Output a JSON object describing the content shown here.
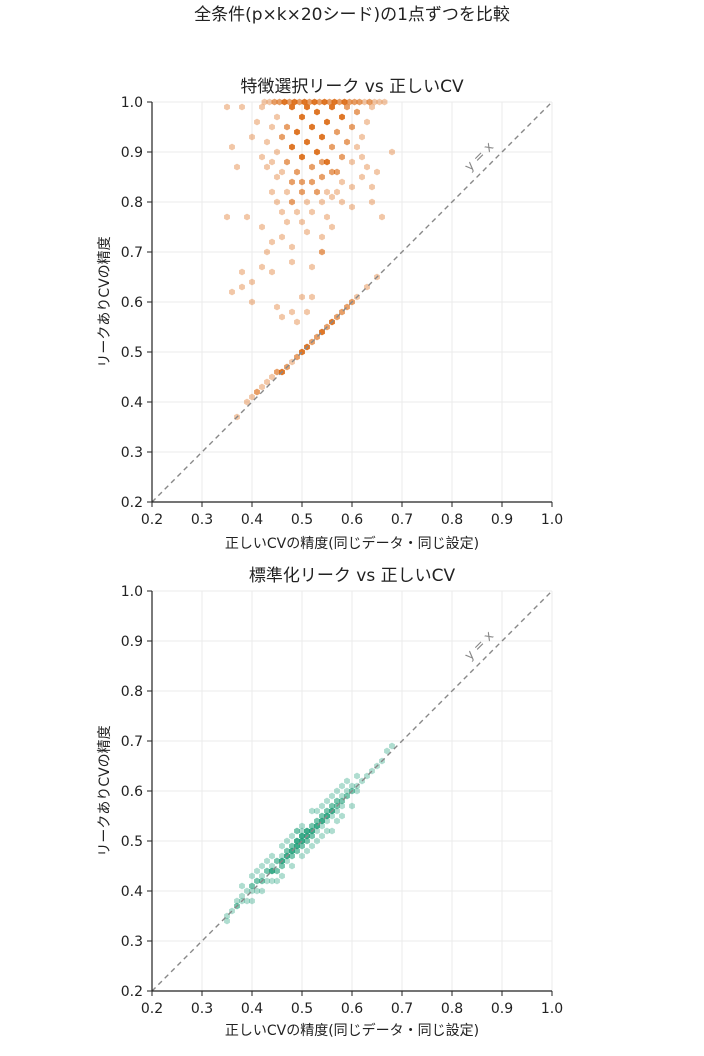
{
  "suptitle": "全条件(p×k×20シード)の1点ずつを比較",
  "chart_data": [
    {
      "type": "hexbin",
      "title": "特徴選択リーク vs 正しいCV",
      "xlabel": "正しいCVの精度(同じデータ・同じ設定)",
      "ylabel": "リークありCVの精度",
      "xlim": [
        0.2,
        1.0
      ],
      "ylim": [
        0.2,
        1.0
      ],
      "xticks": [
        "0.2",
        "0.3",
        "0.4",
        "0.5",
        "0.6",
        "0.7",
        "0.8",
        "0.9",
        "1.0"
      ],
      "yticks": [
        "0.2",
        "0.3",
        "0.4",
        "0.5",
        "0.6",
        "0.7",
        "0.8",
        "0.9",
        "1.0"
      ],
      "grid": true,
      "color": "#d95f02",
      "reference_line": {
        "label": "y = x",
        "slope": 1,
        "intercept": 0
      },
      "points": [
        [
          0.37,
          0.37,
          1
        ],
        [
          0.39,
          0.4,
          1
        ],
        [
          0.4,
          0.41,
          1
        ],
        [
          0.41,
          0.42,
          2
        ],
        [
          0.42,
          0.43,
          1
        ],
        [
          0.43,
          0.44,
          1
        ],
        [
          0.44,
          0.45,
          1
        ],
        [
          0.45,
          0.46,
          2
        ],
        [
          0.46,
          0.46,
          3
        ],
        [
          0.47,
          0.47,
          2
        ],
        [
          0.48,
          0.48,
          1
        ],
        [
          0.49,
          0.49,
          2
        ],
        [
          0.5,
          0.5,
          3
        ],
        [
          0.51,
          0.51,
          3
        ],
        [
          0.52,
          0.52,
          2
        ],
        [
          0.53,
          0.53,
          2
        ],
        [
          0.54,
          0.54,
          3
        ],
        [
          0.55,
          0.55,
          2
        ],
        [
          0.56,
          0.56,
          3
        ],
        [
          0.57,
          0.57,
          2
        ],
        [
          0.58,
          0.58,
          2
        ],
        [
          0.59,
          0.59,
          2
        ],
        [
          0.6,
          0.6,
          2
        ],
        [
          0.61,
          0.61,
          1
        ],
        [
          0.63,
          0.63,
          1
        ],
        [
          0.65,
          0.65,
          1
        ],
        [
          0.36,
          0.62,
          1
        ],
        [
          0.38,
          0.63,
          1
        ],
        [
          0.4,
          0.6,
          1
        ],
        [
          0.39,
          0.77,
          1
        ],
        [
          0.37,
          0.87,
          1
        ],
        [
          0.36,
          0.91,
          1
        ],
        [
          0.35,
          0.77,
          1
        ],
        [
          0.35,
          0.99,
          1
        ],
        [
          0.38,
          0.99,
          1
        ],
        [
          0.38,
          0.66,
          1
        ],
        [
          0.4,
          0.64,
          1
        ],
        [
          0.42,
          0.67,
          1
        ],
        [
          0.42,
          0.75,
          1
        ],
        [
          0.43,
          0.7,
          1
        ],
        [
          0.44,
          0.72,
          1
        ],
        [
          0.44,
          0.66,
          1
        ],
        [
          0.45,
          0.59,
          1
        ],
        [
          0.46,
          0.57,
          1
        ],
        [
          0.48,
          0.58,
          1
        ],
        [
          0.49,
          0.56,
          1
        ],
        [
          0.51,
          0.58,
          1
        ],
        [
          0.52,
          0.61,
          1
        ],
        [
          0.5,
          0.61,
          1
        ],
        [
          0.52,
          0.67,
          1
        ],
        [
          0.54,
          0.7,
          2
        ],
        [
          0.54,
          0.73,
          1
        ],
        [
          0.48,
          0.68,
          1
        ],
        [
          0.48,
          0.71,
          1
        ],
        [
          0.46,
          0.73,
          1
        ],
        [
          0.56,
          0.75,
          1
        ],
        [
          0.56,
          0.81,
          1
        ],
        [
          0.6,
          0.79,
          1
        ],
        [
          0.6,
          0.83,
          1
        ],
        [
          0.62,
          0.85,
          1
        ],
        [
          0.63,
          0.87,
          1
        ],
        [
          0.64,
          0.83,
          1
        ],
        [
          0.65,
          0.86,
          1
        ],
        [
          0.66,
          0.77,
          1
        ],
        [
          0.68,
          0.9,
          1
        ],
        [
          0.64,
          0.8,
          1
        ],
        [
          0.45,
          0.9,
          1
        ],
        [
          0.46,
          0.93,
          2
        ],
        [
          0.47,
          0.88,
          2
        ],
        [
          0.47,
          0.95,
          2
        ],
        [
          0.48,
          0.91,
          3
        ],
        [
          0.48,
          0.99,
          3
        ],
        [
          0.49,
          0.86,
          2
        ],
        [
          0.49,
          0.94,
          3
        ],
        [
          0.5,
          0.89,
          3
        ],
        [
          0.5,
          0.97,
          3
        ],
        [
          0.51,
          0.92,
          3
        ],
        [
          0.51,
          0.99,
          3
        ],
        [
          0.52,
          0.87,
          2
        ],
        [
          0.52,
          0.95,
          3
        ],
        [
          0.53,
          0.9,
          3
        ],
        [
          0.53,
          0.98,
          3
        ],
        [
          0.54,
          0.85,
          2
        ],
        [
          0.54,
          0.93,
          3
        ],
        [
          0.55,
          0.88,
          3
        ],
        [
          0.55,
          0.96,
          3
        ],
        [
          0.56,
          0.91,
          2
        ],
        [
          0.56,
          0.99,
          3
        ],
        [
          0.57,
          0.86,
          2
        ],
        [
          0.57,
          0.94,
          2
        ],
        [
          0.58,
          0.89,
          2
        ],
        [
          0.58,
          0.97,
          3
        ],
        [
          0.59,
          0.92,
          2
        ],
        [
          0.6,
          0.95,
          2
        ],
        [
          0.61,
          0.98,
          2
        ],
        [
          0.62,
          0.93,
          1
        ],
        [
          0.44,
          0.95,
          1
        ],
        [
          0.43,
          0.87,
          1
        ],
        [
          0.44,
          0.82,
          1
        ],
        [
          0.45,
          0.8,
          1
        ],
        [
          0.46,
          0.78,
          1
        ],
        [
          0.47,
          0.76,
          1
        ],
        [
          0.48,
          0.8,
          2
        ],
        [
          0.49,
          0.78,
          1
        ],
        [
          0.5,
          0.82,
          2
        ],
        [
          0.51,
          0.8,
          1
        ],
        [
          0.52,
          0.78,
          1
        ],
        [
          0.53,
          0.82,
          2
        ],
        [
          0.54,
          0.8,
          1
        ],
        [
          0.55,
          0.82,
          1
        ],
        [
          0.57,
          0.82,
          1
        ],
        [
          0.58,
          0.8,
          1
        ],
        [
          0.5,
          0.76,
          1
        ],
        [
          0.51,
          0.74,
          1
        ],
        [
          0.47,
          0.82,
          1
        ],
        [
          0.45,
          0.85,
          1
        ],
        [
          0.55,
          0.77,
          1
        ],
        [
          0.4,
          0.93,
          1
        ],
        [
          0.41,
          0.96,
          1
        ],
        [
          0.42,
          0.89,
          1
        ],
        [
          0.42,
          0.99,
          1
        ],
        [
          0.59,
          0.99,
          2
        ],
        [
          0.6,
          0.88,
          1
        ],
        [
          0.61,
          0.91,
          1
        ],
        [
          0.62,
          0.89,
          1
        ],
        [
          0.63,
          0.96,
          1
        ],
        [
          0.64,
          0.99,
          1
        ],
        [
          0.58,
          0.84,
          1
        ],
        [
          0.5,
          0.84,
          2
        ],
        [
          0.52,
          0.84,
          2
        ],
        [
          0.54,
          0.88,
          2
        ],
        [
          0.56,
          0.86,
          2
        ],
        [
          0.48,
          0.84,
          2
        ],
        [
          0.46,
          0.86,
          1
        ],
        [
          0.44,
          0.88,
          1
        ],
        [
          0.43,
          0.92,
          1
        ],
        [
          0.45,
          0.97,
          1
        ],
        [
          0.455,
          1.0,
          2
        ],
        [
          0.465,
          1.0,
          3
        ],
        [
          0.475,
          1.0,
          2
        ],
        [
          0.485,
          1.0,
          3
        ],
        [
          0.495,
          1.0,
          2
        ],
        [
          0.505,
          1.0,
          3
        ],
        [
          0.515,
          1.0,
          2
        ],
        [
          0.525,
          1.0,
          3
        ],
        [
          0.535,
          1.0,
          2
        ],
        [
          0.545,
          1.0,
          3
        ],
        [
          0.555,
          1.0,
          2
        ],
        [
          0.565,
          1.0,
          3
        ],
        [
          0.575,
          1.0,
          2
        ],
        [
          0.585,
          1.0,
          3
        ],
        [
          0.595,
          1.0,
          2
        ],
        [
          0.605,
          1.0,
          2
        ],
        [
          0.615,
          1.0,
          2
        ],
        [
          0.625,
          1.0,
          1
        ],
        [
          0.635,
          1.0,
          2
        ],
        [
          0.645,
          1.0,
          1
        ],
        [
          0.655,
          1.0,
          1
        ],
        [
          0.665,
          1.0,
          1
        ],
        [
          0.445,
          1.0,
          2
        ],
        [
          0.435,
          1.0,
          1
        ],
        [
          0.425,
          1.0,
          1
        ]
      ]
    },
    {
      "type": "hexbin",
      "title": "標準化リーク vs 正しいCV",
      "xlabel": "正しいCVの精度(同じデータ・同じ設定)",
      "ylabel": "リークありCVの精度",
      "xlim": [
        0.2,
        1.0
      ],
      "ylim": [
        0.2,
        1.0
      ],
      "xticks": [
        "0.2",
        "0.3",
        "0.4",
        "0.5",
        "0.6",
        "0.7",
        "0.8",
        "0.9",
        "1.0"
      ],
      "yticks": [
        "0.2",
        "0.3",
        "0.4",
        "0.5",
        "0.6",
        "0.7",
        "0.8",
        "0.9",
        "1.0"
      ],
      "grid": true,
      "color": "#1b9e77",
      "reference_line": {
        "label": "y = x",
        "slope": 1,
        "intercept": 0
      },
      "points": [
        [
          0.35,
          0.34,
          1
        ],
        [
          0.35,
          0.35,
          1
        ],
        [
          0.36,
          0.36,
          1
        ],
        [
          0.37,
          0.37,
          2
        ],
        [
          0.37,
          0.38,
          1
        ],
        [
          0.38,
          0.38,
          1
        ],
        [
          0.38,
          0.39,
          1
        ],
        [
          0.39,
          0.4,
          1
        ],
        [
          0.39,
          0.38,
          1
        ],
        [
          0.4,
          0.41,
          2
        ],
        [
          0.4,
          0.4,
          1
        ],
        [
          0.41,
          0.42,
          2
        ],
        [
          0.41,
          0.4,
          1
        ],
        [
          0.42,
          0.42,
          2
        ],
        [
          0.42,
          0.43,
          1
        ],
        [
          0.43,
          0.44,
          2
        ],
        [
          0.43,
          0.42,
          1
        ],
        [
          0.44,
          0.44,
          3
        ],
        [
          0.44,
          0.45,
          1
        ],
        [
          0.45,
          0.46,
          2
        ],
        [
          0.45,
          0.44,
          2
        ],
        [
          0.46,
          0.46,
          3
        ],
        [
          0.46,
          0.45,
          2
        ],
        [
          0.46,
          0.47,
          1
        ],
        [
          0.47,
          0.47,
          3
        ],
        [
          0.47,
          0.48,
          2
        ],
        [
          0.47,
          0.46,
          1
        ],
        [
          0.48,
          0.48,
          3
        ],
        [
          0.48,
          0.47,
          2
        ],
        [
          0.48,
          0.49,
          2
        ],
        [
          0.49,
          0.49,
          3
        ],
        [
          0.49,
          0.5,
          3
        ],
        [
          0.49,
          0.48,
          2
        ],
        [
          0.5,
          0.5,
          3
        ],
        [
          0.5,
          0.51,
          3
        ],
        [
          0.5,
          0.49,
          2
        ],
        [
          0.5,
          0.52,
          1
        ],
        [
          0.51,
          0.51,
          3
        ],
        [
          0.51,
          0.52,
          3
        ],
        [
          0.51,
          0.5,
          2
        ],
        [
          0.52,
          0.52,
          3
        ],
        [
          0.52,
          0.53,
          2
        ],
        [
          0.52,
          0.51,
          2
        ],
        [
          0.53,
          0.53,
          3
        ],
        [
          0.53,
          0.54,
          2
        ],
        [
          0.53,
          0.52,
          1
        ],
        [
          0.54,
          0.54,
          3
        ],
        [
          0.54,
          0.55,
          2
        ],
        [
          0.54,
          0.53,
          1
        ],
        [
          0.55,
          0.55,
          3
        ],
        [
          0.55,
          0.56,
          2
        ],
        [
          0.55,
          0.54,
          1
        ],
        [
          0.56,
          0.56,
          3
        ],
        [
          0.56,
          0.57,
          2
        ],
        [
          0.56,
          0.55,
          1
        ],
        [
          0.57,
          0.57,
          2
        ],
        [
          0.57,
          0.58,
          2
        ],
        [
          0.57,
          0.56,
          1
        ],
        [
          0.58,
          0.58,
          2
        ],
        [
          0.58,
          0.59,
          1
        ],
        [
          0.58,
          0.57,
          1
        ],
        [
          0.59,
          0.59,
          2
        ],
        [
          0.59,
          0.6,
          1
        ],
        [
          0.6,
          0.6,
          2
        ],
        [
          0.6,
          0.61,
          1
        ],
        [
          0.61,
          0.61,
          1
        ],
        [
          0.61,
          0.6,
          1
        ],
        [
          0.62,
          0.62,
          1
        ],
        [
          0.63,
          0.63,
          1
        ],
        [
          0.64,
          0.64,
          1
        ],
        [
          0.65,
          0.65,
          1
        ],
        [
          0.66,
          0.66,
          1
        ],
        [
          0.67,
          0.68,
          1
        ],
        [
          0.68,
          0.69,
          1
        ],
        [
          0.4,
          0.38,
          1
        ],
        [
          0.42,
          0.4,
          1
        ],
        [
          0.44,
          0.42,
          1
        ],
        [
          0.46,
          0.43,
          1
        ],
        [
          0.48,
          0.45,
          1
        ],
        [
          0.5,
          0.47,
          1
        ],
        [
          0.52,
          0.49,
          1
        ],
        [
          0.54,
          0.51,
          1
        ],
        [
          0.56,
          0.52,
          1
        ],
        [
          0.58,
          0.55,
          1
        ],
        [
          0.6,
          0.57,
          1
        ],
        [
          0.38,
          0.41,
          1
        ],
        [
          0.4,
          0.43,
          1
        ],
        [
          0.42,
          0.45,
          1
        ],
        [
          0.44,
          0.47,
          1
        ],
        [
          0.46,
          0.49,
          1
        ],
        [
          0.48,
          0.51,
          1
        ],
        [
          0.5,
          0.53,
          1
        ],
        [
          0.52,
          0.56,
          1
        ],
        [
          0.54,
          0.57,
          1
        ],
        [
          0.56,
          0.59,
          1
        ],
        [
          0.58,
          0.61,
          1
        ],
        [
          0.45,
          0.42,
          1
        ],
        [
          0.53,
          0.5,
          1
        ],
        [
          0.55,
          0.52,
          1
        ],
        [
          0.57,
          0.54,
          1
        ],
        [
          0.51,
          0.48,
          1
        ],
        [
          0.49,
          0.52,
          2
        ],
        [
          0.47,
          0.5,
          1
        ],
        [
          0.53,
          0.56,
          1
        ],
        [
          0.55,
          0.58,
          1
        ],
        [
          0.43,
          0.46,
          1
        ],
        [
          0.41,
          0.44,
          1
        ],
        [
          0.59,
          0.62,
          1
        ],
        [
          0.61,
          0.63,
          1
        ],
        [
          0.57,
          0.6,
          1
        ]
      ]
    }
  ]
}
